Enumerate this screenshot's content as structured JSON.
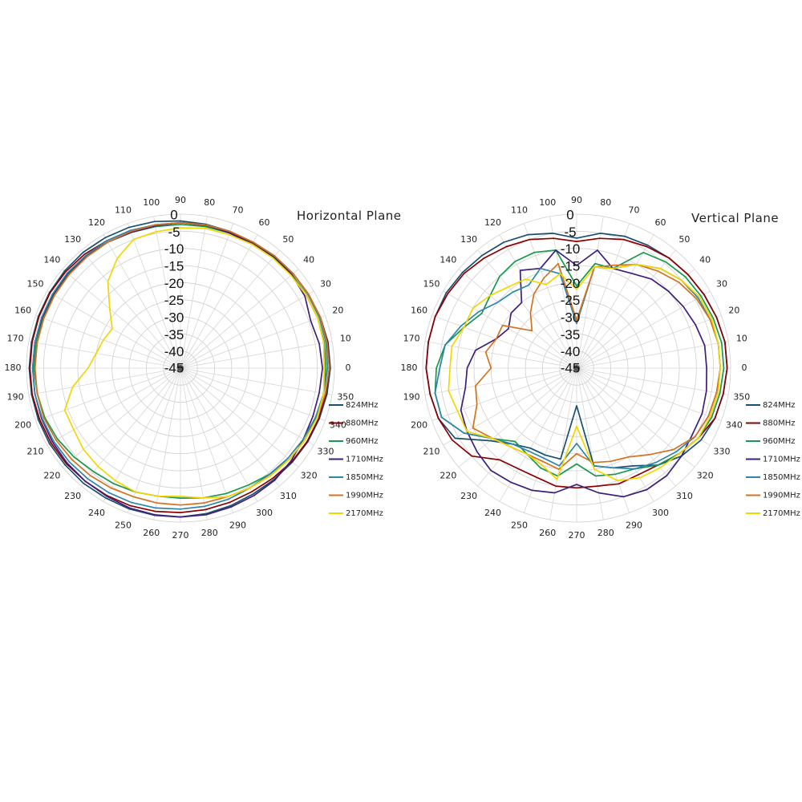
{
  "chart_data": [
    {
      "type": "polar-line",
      "title": "Horizontal Plane",
      "angle_labels": [
        "0",
        "10",
        "20",
        "30",
        "40",
        "50",
        "60",
        "70",
        "80",
        "90",
        "100",
        "110",
        "120",
        "130",
        "140",
        "150",
        "160",
        "170",
        "180",
        "190",
        "200",
        "210",
        "220",
        "230",
        "240",
        "250",
        "260",
        "270",
        "280",
        "290",
        "300",
        "310",
        "320",
        "330",
        "340",
        "350"
      ],
      "radial_labels": [
        "0",
        "-5",
        "-10",
        "-15",
        "-20",
        "-25",
        "-30",
        "-35",
        "-40",
        "-45"
      ],
      "rlim": [
        -45,
        0
      ],
      "grid": true,
      "legend_position": "right-bottom",
      "angles": [
        0,
        10,
        20,
        30,
        40,
        50,
        60,
        70,
        80,
        90,
        100,
        110,
        120,
        130,
        140,
        150,
        160,
        170,
        180,
        190,
        200,
        210,
        220,
        230,
        240,
        250,
        260,
        270,
        280,
        290,
        300,
        310,
        320,
        330,
        340,
        350
      ],
      "series": [
        {
          "name": "824MHz",
          "color": "#1b4f72",
          "values": [
            -1.2,
            -1.2,
            -1.5,
            -1.8,
            -2,
            -2.2,
            -2.5,
            -2.5,
            -2.3,
            -2,
            -1.5,
            -1.2,
            -1.0,
            -0.8,
            -0.8,
            -0.8,
            -0.8,
            -0.8,
            -0.8,
            -0.8,
            -0.8,
            -0.8,
            -1.0,
            -1.0,
            -1.2,
            -1.2,
            -1.3,
            -1.5,
            -1.8,
            -2.2,
            -2.5,
            -2.5,
            -2.3,
            -2,
            -1.8,
            -1.5
          ]
        },
        {
          "name": "880MHz",
          "color": "#8b0000",
          "values": [
            -1.5,
            -1.3,
            -1.5,
            -1.8,
            -2,
            -2.5,
            -2.8,
            -2.8,
            -2.7,
            -2.5,
            -2.5,
            -2.2,
            -2,
            -1.5,
            -1.2,
            -1.0,
            -1.0,
            -1.0,
            -1.0,
            -1.0,
            -1.2,
            -1.3,
            -1.5,
            -1.8,
            -2,
            -2.2,
            -2.5,
            -2.8,
            -3,
            -3.2,
            -3.3,
            -3,
            -2.5,
            -2.2,
            -2,
            -1.8
          ]
        },
        {
          "name": "960MHz",
          "color": "#1a9850",
          "values": [
            -2.5,
            -2.3,
            -2.3,
            -2.5,
            -2.5,
            -2.8,
            -3,
            -3,
            -3,
            -3,
            -3,
            -2.8,
            -2.5,
            -2.5,
            -2.3,
            -2.3,
            -2.2,
            -2.2,
            -2.2,
            -2.5,
            -2.8,
            -3.5,
            -4.5,
            -5.5,
            -6,
            -6.5,
            -7,
            -7,
            -6.5,
            -6,
            -5.5,
            -4.5,
            -3.5,
            -3,
            -2.8,
            -2.5
          ]
        },
        {
          "name": "1710MHz",
          "color": "#3f1f7a",
          "values": [
            -3.5,
            -3.8,
            -4.5,
            -3,
            -2.5,
            -2.5,
            -3,
            -3,
            -2.5,
            -2.5,
            -2.8,
            -2.8,
            -2.5,
            -2.2,
            -2,
            -2,
            -2,
            -1.8,
            -1.8,
            -1.8,
            -1.8,
            -1.8,
            -1.8,
            -1.8,
            -1.8,
            -1.5,
            -1.5,
            -1.5,
            -1.5,
            -1.8,
            -2,
            -2.2,
            -2.8,
            -3.5,
            -3.8,
            -3.8
          ]
        },
        {
          "name": "1850MHz",
          "color": "#2e86ab",
          "values": [
            -2,
            -1.8,
            -1.8,
            -2,
            -2,
            -2.2,
            -2.5,
            -2.5,
            -2.5,
            -2.5,
            -2.5,
            -2.2,
            -2,
            -2,
            -1.8,
            -1.8,
            -1.8,
            -1.8,
            -1.8,
            -1.8,
            -2,
            -2.2,
            -2.5,
            -2.8,
            -3,
            -3.2,
            -3.5,
            -3.8,
            -4,
            -4.2,
            -4.5,
            -4.5,
            -4,
            -3.5,
            -3,
            -2.5
          ]
        },
        {
          "name": "1990MHz",
          "color": "#d4731f",
          "values": [
            -1.5,
            -1.5,
            -1.5,
            -1.8,
            -2,
            -2.2,
            -2.5,
            -2.5,
            -2.5,
            -2.5,
            -2.5,
            -2.5,
            -2.5,
            -2.5,
            -2.5,
            -2.5,
            -2.5,
            -2.5,
            -2.5,
            -2.5,
            -2.5,
            -3,
            -3.5,
            -4,
            -4.5,
            -5,
            -5,
            -5,
            -5,
            -5,
            -4.5,
            -4,
            -3.5,
            -3,
            -2.5,
            -2
          ]
        },
        {
          "name": "2170MHz",
          "color": "#f2d600",
          "values": [
            -3,
            -2.5,
            -2.3,
            -2.5,
            -2.8,
            -3,
            -3.2,
            -3.5,
            -3.5,
            -4,
            -4.5,
            -5,
            -8,
            -12,
            -18,
            -22,
            -21,
            -20,
            -18,
            -13,
            -9,
            -9,
            -8,
            -7.5,
            -7,
            -6.5,
            -7,
            -7.5,
            -6.5,
            -5,
            -4.5,
            -4,
            -3.5,
            -3,
            -2.5,
            -2.5
          ]
        }
      ]
    },
    {
      "type": "polar-line",
      "title": "Vertical Plane",
      "angle_labels": [
        "0",
        "10",
        "20",
        "30",
        "40",
        "50",
        "60",
        "70",
        "80",
        "90",
        "100",
        "110",
        "120",
        "130",
        "140",
        "150",
        "160",
        "170",
        "180",
        "190",
        "200",
        "210",
        "220",
        "230",
        "240",
        "250",
        "260",
        "270",
        "280",
        "290",
        "300",
        "310",
        "320",
        "330",
        "340",
        "350"
      ],
      "radial_labels": [
        "0",
        "-5",
        "-10",
        "-15",
        "-20",
        "-25",
        "-30",
        "-35",
        "-40",
        "-45"
      ],
      "rlim": [
        -45,
        0
      ],
      "grid": true,
      "legend_position": "right-bottom",
      "angles": [
        0,
        10,
        20,
        30,
        40,
        50,
        60,
        70,
        80,
        90,
        100,
        110,
        120,
        130,
        140,
        150,
        160,
        170,
        180,
        190,
        200,
        210,
        220,
        230,
        240,
        250,
        260,
        270,
        280,
        290,
        300,
        310,
        320,
        330,
        340,
        350
      ],
      "series": [
        {
          "name": "824MHz",
          "color": "#1b4f72",
          "values": [
            -1,
            -1,
            -1.5,
            -2,
            -2.5,
            -3,
            -3.5,
            -4,
            -5,
            -7,
            -5,
            -3.5,
            -2.5,
            -2,
            -1.5,
            -1,
            -1,
            -1,
            -1,
            -1.5,
            -2,
            -4,
            -12,
            -16,
            -18,
            -18,
            -18,
            -34,
            -16,
            -14,
            -12,
            -8,
            -5,
            -3,
            -2,
            -1.5
          ]
        },
        {
          "name": "880MHz",
          "color": "#8b0000",
          "values": [
            -1,
            -1,
            -1.5,
            -2,
            -2.5,
            -3,
            -4,
            -5,
            -6.5,
            -8,
            -6.5,
            -5,
            -4,
            -3,
            -2,
            -1.5,
            -1,
            -1,
            -1,
            -1.5,
            -2,
            -3,
            -5,
            -10,
            -11,
            -11,
            -10,
            -10,
            -10,
            -9,
            -9,
            -8,
            -6,
            -4,
            -2,
            -1.5
          ]
        },
        {
          "name": "960MHz",
          "color": "#1a9850",
          "values": [
            -2,
            -2,
            -2.5,
            -3,
            -3.5,
            -4.5,
            -6,
            -14,
            -14,
            -21,
            -10,
            -9,
            -9,
            -10,
            -12,
            -13,
            -10,
            -6,
            -4,
            -3,
            -3,
            -7,
            -13,
            -17,
            -16,
            -14,
            -13,
            -17,
            -13,
            -12,
            -11,
            -8,
            -6,
            -4,
            -3,
            -2.5
          ]
        },
        {
          "name": "1710MHz",
          "color": "#3f1f7a",
          "values": [
            -7,
            -7,
            -8,
            -9,
            -10,
            -11,
            -13,
            -14,
            -10,
            -15,
            -10,
            -14,
            -12,
            -20,
            -20,
            -22,
            -20,
            -15,
            -13,
            -12,
            -9,
            -8,
            -7,
            -6,
            -6.5,
            -7,
            -8,
            -11,
            -8,
            -5,
            -4,
            -4,
            -5,
            -6,
            -6,
            -6.5
          ]
        },
        {
          "name": "1850MHz",
          "color": "#2e86ab",
          "values": [
            -3,
            -3,
            -3.5,
            -4,
            -5,
            -7,
            -10,
            -14,
            -15,
            -32,
            -17,
            -14,
            -17,
            -16,
            -15,
            -12,
            -9,
            -6,
            -5,
            -3,
            -3,
            -7,
            -13,
            -16,
            -17,
            -17,
            -16,
            -23,
            -16,
            -14,
            -11,
            -9,
            -7,
            -5,
            -4,
            -3.5
          ]
        },
        {
          "name": "1990MHz",
          "color": "#d4731f",
          "values": [
            -3,
            -3,
            -3.5,
            -4.5,
            -6,
            -8,
            -10,
            -13,
            -15,
            -31,
            -14,
            -17,
            -20,
            -24,
            -28,
            -20,
            -20,
            -18,
            -20,
            -15,
            -14,
            -10,
            -13,
            -15,
            -16,
            -16,
            -15,
            -20,
            -17,
            -16,
            -15,
            -12,
            -8,
            -5,
            -4,
            -3.5
          ]
        },
        {
          "name": "2170MHz",
          "color": "#f2d600",
          "values": [
            -3,
            -3,
            -3,
            -3.5,
            -5,
            -7,
            -10,
            -14,
            -15,
            -22,
            -17,
            -19,
            -15,
            -14,
            -12,
            -10,
            -10,
            -8,
            -8,
            -7,
            -8,
            -8,
            -13,
            -15,
            -16,
            -15,
            -12,
            -28,
            -15,
            -10,
            -8,
            -7,
            -6,
            -4,
            -3.5,
            -3
          ]
        }
      ]
    }
  ]
}
